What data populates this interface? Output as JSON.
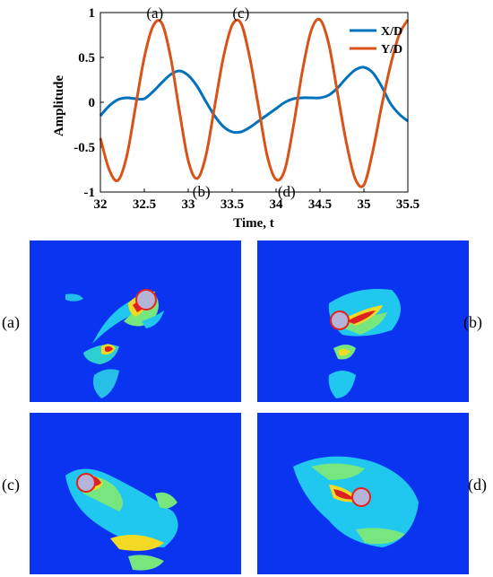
{
  "chart_data": {
    "type": "line",
    "xlabel": "Time, t",
    "ylabel": "Amplitude",
    "xlim": [
      32,
      35.5
    ],
    "ylim": [
      -1,
      1
    ],
    "xticks": [
      "32",
      "32.5",
      "33",
      "33.5",
      "34",
      "34.5",
      "35",
      "35.5"
    ],
    "yticks": [
      "1",
      "0.5",
      "0",
      "-0.5",
      "-1"
    ],
    "legend_position": "top-right",
    "series": [
      {
        "name": "X/D",
        "color": "#0072bd",
        "x": [
          32.0,
          32.1,
          32.2,
          32.3,
          32.4,
          32.5,
          32.6,
          32.7,
          32.8,
          32.9,
          33.0,
          33.1,
          33.2,
          33.3,
          33.4,
          33.5,
          33.6,
          33.7,
          33.8,
          33.9,
          34.0,
          34.1,
          34.2,
          34.3,
          34.4,
          34.5,
          34.6,
          34.7,
          34.8,
          34.9,
          35.0,
          35.1,
          35.2,
          35.3,
          35.4,
          35.5
        ],
        "y": [
          -0.15,
          -0.04,
          0.03,
          0.05,
          0.04,
          0.04,
          0.12,
          0.22,
          0.31,
          0.35,
          0.3,
          0.18,
          0.01,
          -0.15,
          -0.27,
          -0.33,
          -0.33,
          -0.28,
          -0.21,
          -0.14,
          -0.07,
          0.0,
          0.04,
          0.05,
          0.05,
          0.05,
          0.08,
          0.16,
          0.27,
          0.36,
          0.39,
          0.33,
          0.18,
          -0.01,
          -0.13,
          -0.21
        ]
      },
      {
        "name": "Y/D",
        "color": "#d95319",
        "x": [
          32.0,
          32.1,
          32.2,
          32.3,
          32.4,
          32.5,
          32.6,
          32.7,
          32.8,
          32.9,
          33.0,
          33.1,
          33.2,
          33.3,
          33.4,
          33.5,
          33.6,
          33.7,
          33.8,
          33.9,
          34.0,
          34.1,
          34.2,
          34.3,
          34.4,
          34.5,
          34.6,
          34.7,
          34.8,
          34.9,
          35.0,
          35.1,
          35.2,
          35.3,
          35.4,
          35.5
        ],
        "y": [
          -0.4,
          -0.75,
          -0.87,
          -0.6,
          -0.05,
          0.5,
          0.85,
          0.88,
          0.5,
          -0.1,
          -0.65,
          -0.85,
          -0.6,
          -0.05,
          0.5,
          0.86,
          0.88,
          0.5,
          -0.05,
          -0.6,
          -0.86,
          -0.75,
          -0.25,
          0.35,
          0.8,
          0.92,
          0.65,
          0.1,
          -0.45,
          -0.85,
          -0.92,
          -0.55,
          -0.05,
          0.4,
          0.75,
          0.92
        ]
      }
    ],
    "annotations": [
      {
        "text": "(a)",
        "x": 32.62,
        "y": 1.0
      },
      {
        "text": "(c)",
        "x": 33.6,
        "y": 1.0
      },
      {
        "text": "(b)",
        "x": 33.15,
        "y": -0.99
      },
      {
        "text": "(d)",
        "x": 34.12,
        "y": -0.99
      }
    ]
  },
  "panels": [
    {
      "label": "(a)",
      "background": "#0b34f0"
    },
    {
      "label": "(b)",
      "background": "#0b34f0"
    },
    {
      "label": "(c)",
      "background": "#0b34f0"
    },
    {
      "label": "(d)",
      "background": "#0b34f0"
    }
  ]
}
